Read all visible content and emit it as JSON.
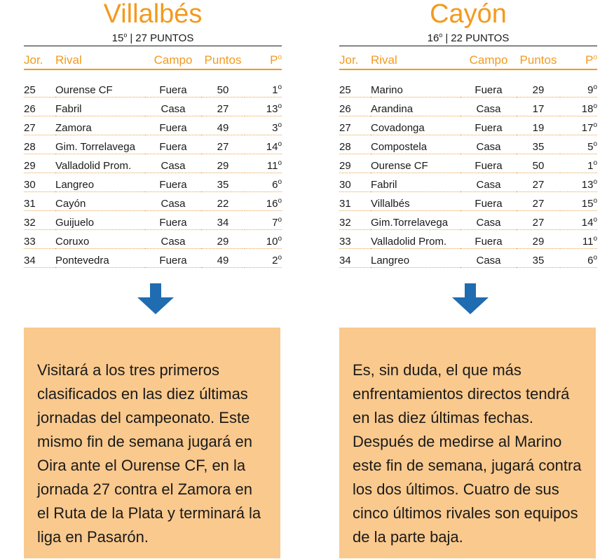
{
  "ordinal_mark": "o",
  "headers": {
    "jor": "Jor.",
    "rival": "Rival",
    "campo": "Campo",
    "puntos": "Puntos",
    "pos": "P"
  },
  "left": {
    "team": "Villalbés",
    "position": "15",
    "points_label": "27 PUNTOS",
    "matches": [
      {
        "jor": "25",
        "rival": "Ourense CF",
        "campo": "Fuera",
        "puntos": "50",
        "pos": "1"
      },
      {
        "jor": "26",
        "rival": "Fabril",
        "campo": "Casa",
        "puntos": "27",
        "pos": "13"
      },
      {
        "jor": "27",
        "rival": "Zamora",
        "campo": "Fuera",
        "puntos": "49",
        "pos": "3"
      },
      {
        "jor": "28",
        "rival": "Gim. Torrelavega",
        "campo": "Fuera",
        "puntos": "27",
        "pos": "14"
      },
      {
        "jor": "29",
        "rival": "Valladolid Prom.",
        "campo": "Casa",
        "puntos": "29",
        "pos": "11"
      },
      {
        "jor": "30",
        "rival": "Langreo",
        "campo": "Fuera",
        "puntos": "35",
        "pos": "6"
      },
      {
        "jor": "31",
        "rival": "Cayón",
        "campo": "Casa",
        "puntos": "22",
        "pos": "16"
      },
      {
        "jor": "32",
        "rival": "Guijuelo",
        "campo": "Fuera",
        "puntos": "34",
        "pos": "7"
      },
      {
        "jor": "33",
        "rival": "Coruxo",
        "campo": "Casa",
        "puntos": "29",
        "pos": "10"
      },
      {
        "jor": "34",
        "rival": "Pontevedra",
        "campo": "Fuera",
        "puntos": "49",
        "pos": "2"
      }
    ],
    "note": "Visitará a los tres primeros clasificados en las diez últimas jornadas del campeonato. Este mismo fin de semana jugará en Oira ante el Ourense CF, en la jornada 27 contra el Zamora en el Ruta de la Plata y terminará la liga en Pasarón."
  },
  "right": {
    "team": "Cayón",
    "position": "16",
    "points_label": "22 PUNTOS",
    "matches": [
      {
        "jor": "25",
        "rival": "Marino",
        "campo": "Fuera",
        "puntos": "29",
        "pos": "9"
      },
      {
        "jor": "26",
        "rival": "Arandina",
        "campo": "Casa",
        "puntos": "17",
        "pos": "18"
      },
      {
        "jor": "27",
        "rival": "Covadonga",
        "campo": "Fuera",
        "puntos": "19",
        "pos": "17"
      },
      {
        "jor": "28",
        "rival": "Compostela",
        "campo": "Casa",
        "puntos": "35",
        "pos": "5"
      },
      {
        "jor": "29",
        "rival": "Ourense CF",
        "campo": "Fuera",
        "puntos": "50",
        "pos": "1"
      },
      {
        "jor": "30",
        "rival": "Fabril",
        "campo": "Casa",
        "puntos": "27",
        "pos": "13"
      },
      {
        "jor": "31",
        "rival": "Villalbés",
        "campo": "Fuera",
        "puntos": "27",
        "pos": "15"
      },
      {
        "jor": "32",
        "rival": "Gim.Torrelavega",
        "campo": "Casa",
        "puntos": "27",
        "pos": "14"
      },
      {
        "jor": "33",
        "rival": "Valladolid Prom.",
        "campo": "Fuera",
        "puntos": "29",
        "pos": "11"
      },
      {
        "jor": "34",
        "rival": "Langreo",
        "campo": "Casa",
        "puntos": "35",
        "pos": "6"
      }
    ],
    "note": "Es, sin duda, el que más enfrentamientos directos tendrá en las diez últimas fechas. Después de medirse al Marino este fin de semana, jugará contra los dos últimos. Cuatro de sus cinco últimos rivales son equipos de la parte baja."
  },
  "colors": {
    "accent": "#f39a1f",
    "note_bg": "#fac98d",
    "arrow": "#1f6cb0"
  },
  "icons": [
    "arrow-down-icon"
  ]
}
